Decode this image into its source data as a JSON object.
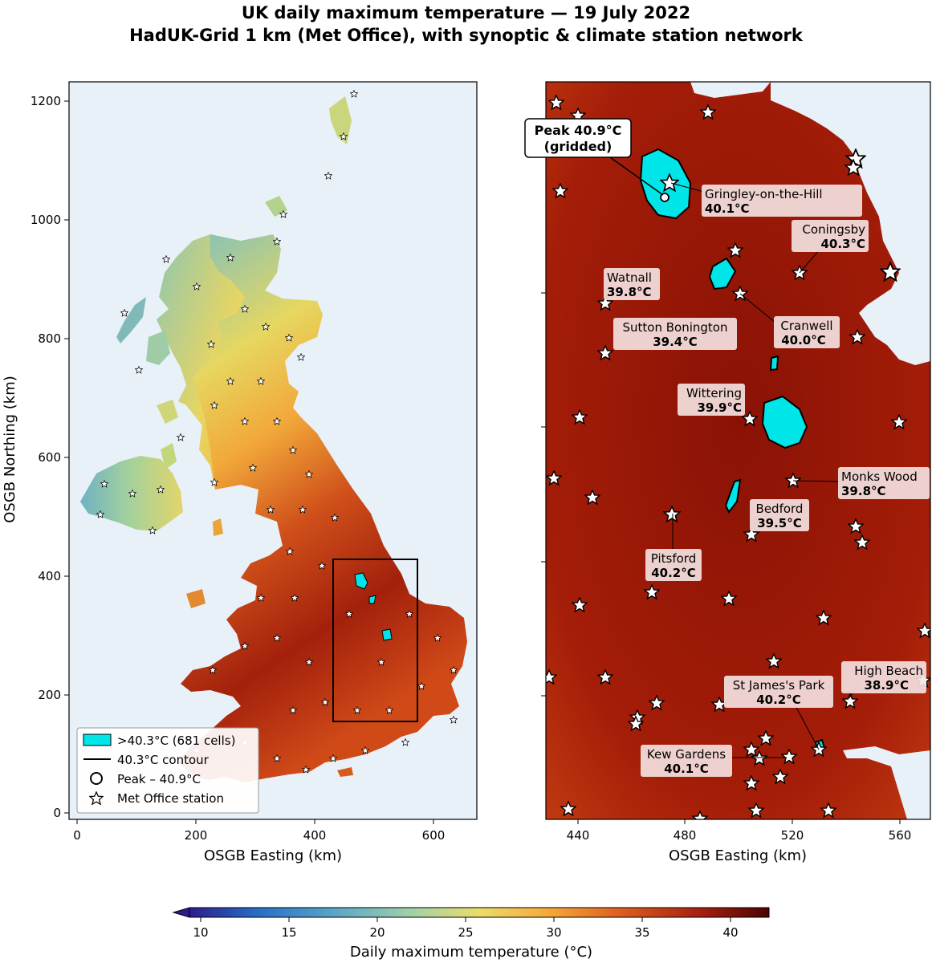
{
  "title": {
    "line1": "UK daily maximum temperature — 19 July 2022",
    "line2": "HadUK-Grid 1 km (Met Office), with synoptic & climate station network"
  },
  "left_map": {
    "x_label": "OSGB Easting (km)",
    "y_label": "OSGB Northing (km)",
    "x_ticks": [
      "0",
      "200",
      "400",
      "600"
    ],
    "y_ticks": [
      "0",
      "200",
      "400",
      "600",
      "800",
      "1000",
      "1200"
    ],
    "legend": {
      "items": [
        {
          "label": ">40.3°C (681 cells)",
          "symbol": "cyan-patch"
        },
        {
          "label": "40.3°C contour",
          "symbol": "black-line"
        },
        {
          "label": "Peak – 40.9°C",
          "symbol": "circle"
        },
        {
          "label": "Met Office station",
          "symbol": "star"
        }
      ]
    }
  },
  "right_map": {
    "x_label": "OSGB Easting (km)",
    "x_ticks": [
      "440",
      "480",
      "520",
      "560"
    ],
    "peak_callout": {
      "line1": "Peak 40.9°C",
      "line2": "(gridded)"
    },
    "stations": [
      {
        "name": "Gringley-on-the-Hill",
        "value": "40.1°C"
      },
      {
        "name": "Coningsby",
        "value": "40.3°C"
      },
      {
        "name": "Watnall",
        "value": "39.8°C"
      },
      {
        "name": "Sutton Bonington",
        "value": "39.4°C"
      },
      {
        "name": "Cranwell",
        "value": "40.0°C"
      },
      {
        "name": "Wittering",
        "value": "39.9°C"
      },
      {
        "name": "Monks Wood",
        "value": "39.8°C"
      },
      {
        "name": "Bedford",
        "value": "39.5°C"
      },
      {
        "name": "Pitsford",
        "value": "40.2°C"
      },
      {
        "name": "High Beach",
        "value": "38.9°C"
      },
      {
        "name": "St James's Park",
        "value": "40.2°C"
      },
      {
        "name": "Kew Gardens",
        "value": "40.1°C"
      }
    ]
  },
  "colorbar": {
    "label": "Daily maximum temperature (°C)",
    "ticks": [
      "10",
      "15",
      "20",
      "25",
      "30",
      "35",
      "40"
    ],
    "range": [
      10,
      42
    ],
    "extend": "min"
  },
  "colors": {
    "sea": "#e8f0f8",
    "hot_region": "#00e5e8",
    "field_dark": "#8c1508",
    "field_mid": "#b52a0c"
  }
}
